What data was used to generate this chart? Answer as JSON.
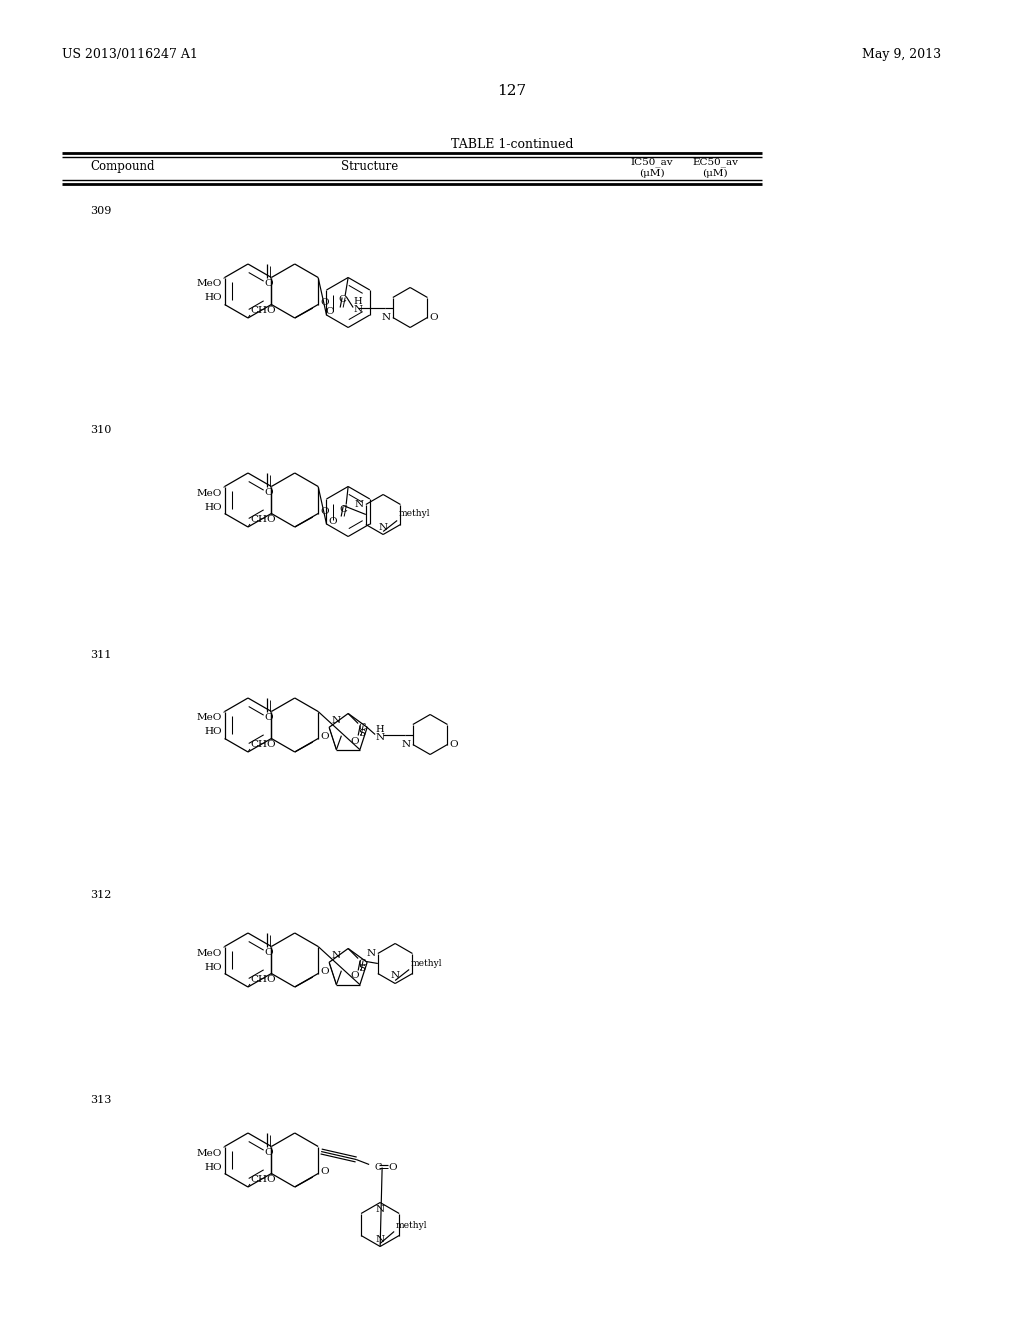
{
  "patent_number": "US 2013/0116247 A1",
  "patent_date": "May 9, 2013",
  "page_number": "127",
  "table_title": "TABLE 1-continued",
  "col_compound": "Compound",
  "col_structure": "Structure",
  "col_ic50_1": "IC50_av",
  "col_ic50_2": "(μM)",
  "col_ec50_1": "EC50_av",
  "col_ec50_2": "(μM)",
  "compounds": [
    "309",
    "310",
    "311",
    "312",
    "313"
  ],
  "bg": "#ffffff",
  "fg": "#000000"
}
